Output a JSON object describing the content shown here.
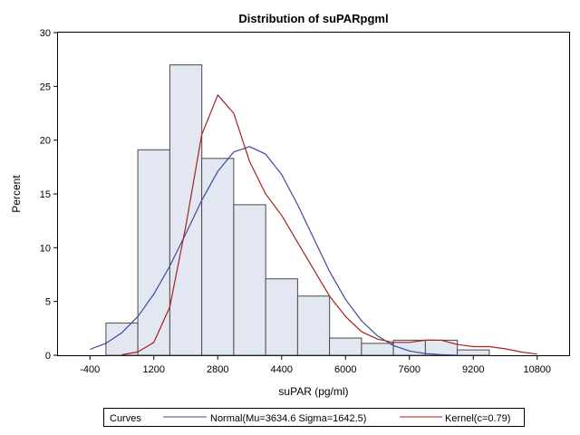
{
  "chart_data": {
    "type": "bar",
    "title": "Distribution of suPARpgml",
    "xlabel": "suPAR (pg/ml)",
    "ylabel": "Percent",
    "xlim": [
      -1200,
      11600
    ],
    "ylim": [
      0,
      30
    ],
    "x_ticks": [
      "-400",
      "1200",
      "2800",
      "4400",
      "6000",
      "7600",
      "9200",
      "10800"
    ],
    "y_ticks": [
      "0",
      "5",
      "10",
      "15",
      "20",
      "25",
      "30"
    ],
    "bin_width": 800,
    "bins": [
      {
        "center": 400,
        "percent": 3.0
      },
      {
        "center": 1200,
        "percent": 19.1
      },
      {
        "center": 2000,
        "percent": 27.0
      },
      {
        "center": 2800,
        "percent": 18.3
      },
      {
        "center": 3600,
        "percent": 14.0
      },
      {
        "center": 4400,
        "percent": 7.1
      },
      {
        "center": 5200,
        "percent": 5.5
      },
      {
        "center": 6000,
        "percent": 1.6
      },
      {
        "center": 6800,
        "percent": 1.1
      },
      {
        "center": 7600,
        "percent": 1.4
      },
      {
        "center": 8400,
        "percent": 1.4
      },
      {
        "center": 9200,
        "percent": 0.5
      }
    ],
    "series": [
      {
        "name": "Normal(Mu=3634.6 Sigma=1642.5)",
        "kind": "line",
        "color": "#3d4a9c",
        "points": [
          [
            -400,
            0.55
          ],
          [
            0,
            1.1
          ],
          [
            400,
            2.1
          ],
          [
            800,
            3.6
          ],
          [
            1200,
            5.7
          ],
          [
            1600,
            8.3
          ],
          [
            2000,
            11.3
          ],
          [
            2400,
            14.4
          ],
          [
            2800,
            17.1
          ],
          [
            3200,
            18.9
          ],
          [
            3600,
            19.4
          ],
          [
            4000,
            18.7
          ],
          [
            4400,
            16.8
          ],
          [
            4800,
            14.0
          ],
          [
            5200,
            10.9
          ],
          [
            5600,
            7.8
          ],
          [
            6000,
            5.2
          ],
          [
            6400,
            3.2
          ],
          [
            6800,
            1.8
          ],
          [
            7200,
            0.9
          ],
          [
            7600,
            0.4
          ],
          [
            8000,
            0.15
          ],
          [
            8400,
            0.05
          ],
          [
            8800,
            0.0
          ]
        ]
      },
      {
        "name": "Kernel(c=0.79)",
        "kind": "line",
        "color": "#a3231f",
        "points": [
          [
            400,
            0.05
          ],
          [
            800,
            0.3
          ],
          [
            1200,
            1.2
          ],
          [
            1600,
            4.5
          ],
          [
            2000,
            12.0
          ],
          [
            2400,
            20.5
          ],
          [
            2800,
            24.2
          ],
          [
            3200,
            22.5
          ],
          [
            3600,
            18.0
          ],
          [
            4000,
            15.0
          ],
          [
            4400,
            13.0
          ],
          [
            4800,
            10.5
          ],
          [
            5200,
            8.0
          ],
          [
            5600,
            5.5
          ],
          [
            6000,
            3.6
          ],
          [
            6400,
            2.2
          ],
          [
            6800,
            1.5
          ],
          [
            7200,
            1.2
          ],
          [
            7600,
            1.2
          ],
          [
            8000,
            1.4
          ],
          [
            8400,
            1.4
          ],
          [
            8800,
            1.0
          ],
          [
            9200,
            0.8
          ],
          [
            9600,
            0.8
          ],
          [
            10000,
            0.6
          ],
          [
            10400,
            0.3
          ],
          [
            10800,
            0.1
          ]
        ]
      }
    ],
    "bar_fill": "#e3e7f1",
    "bar_stroke": "#4a4a4a",
    "legend": {
      "placement": "bottom",
      "title": "Curves",
      "items": [
        "Normal(Mu=3634.6 Sigma=1642.5)",
        "Kernel(c=0.79)"
      ]
    }
  }
}
